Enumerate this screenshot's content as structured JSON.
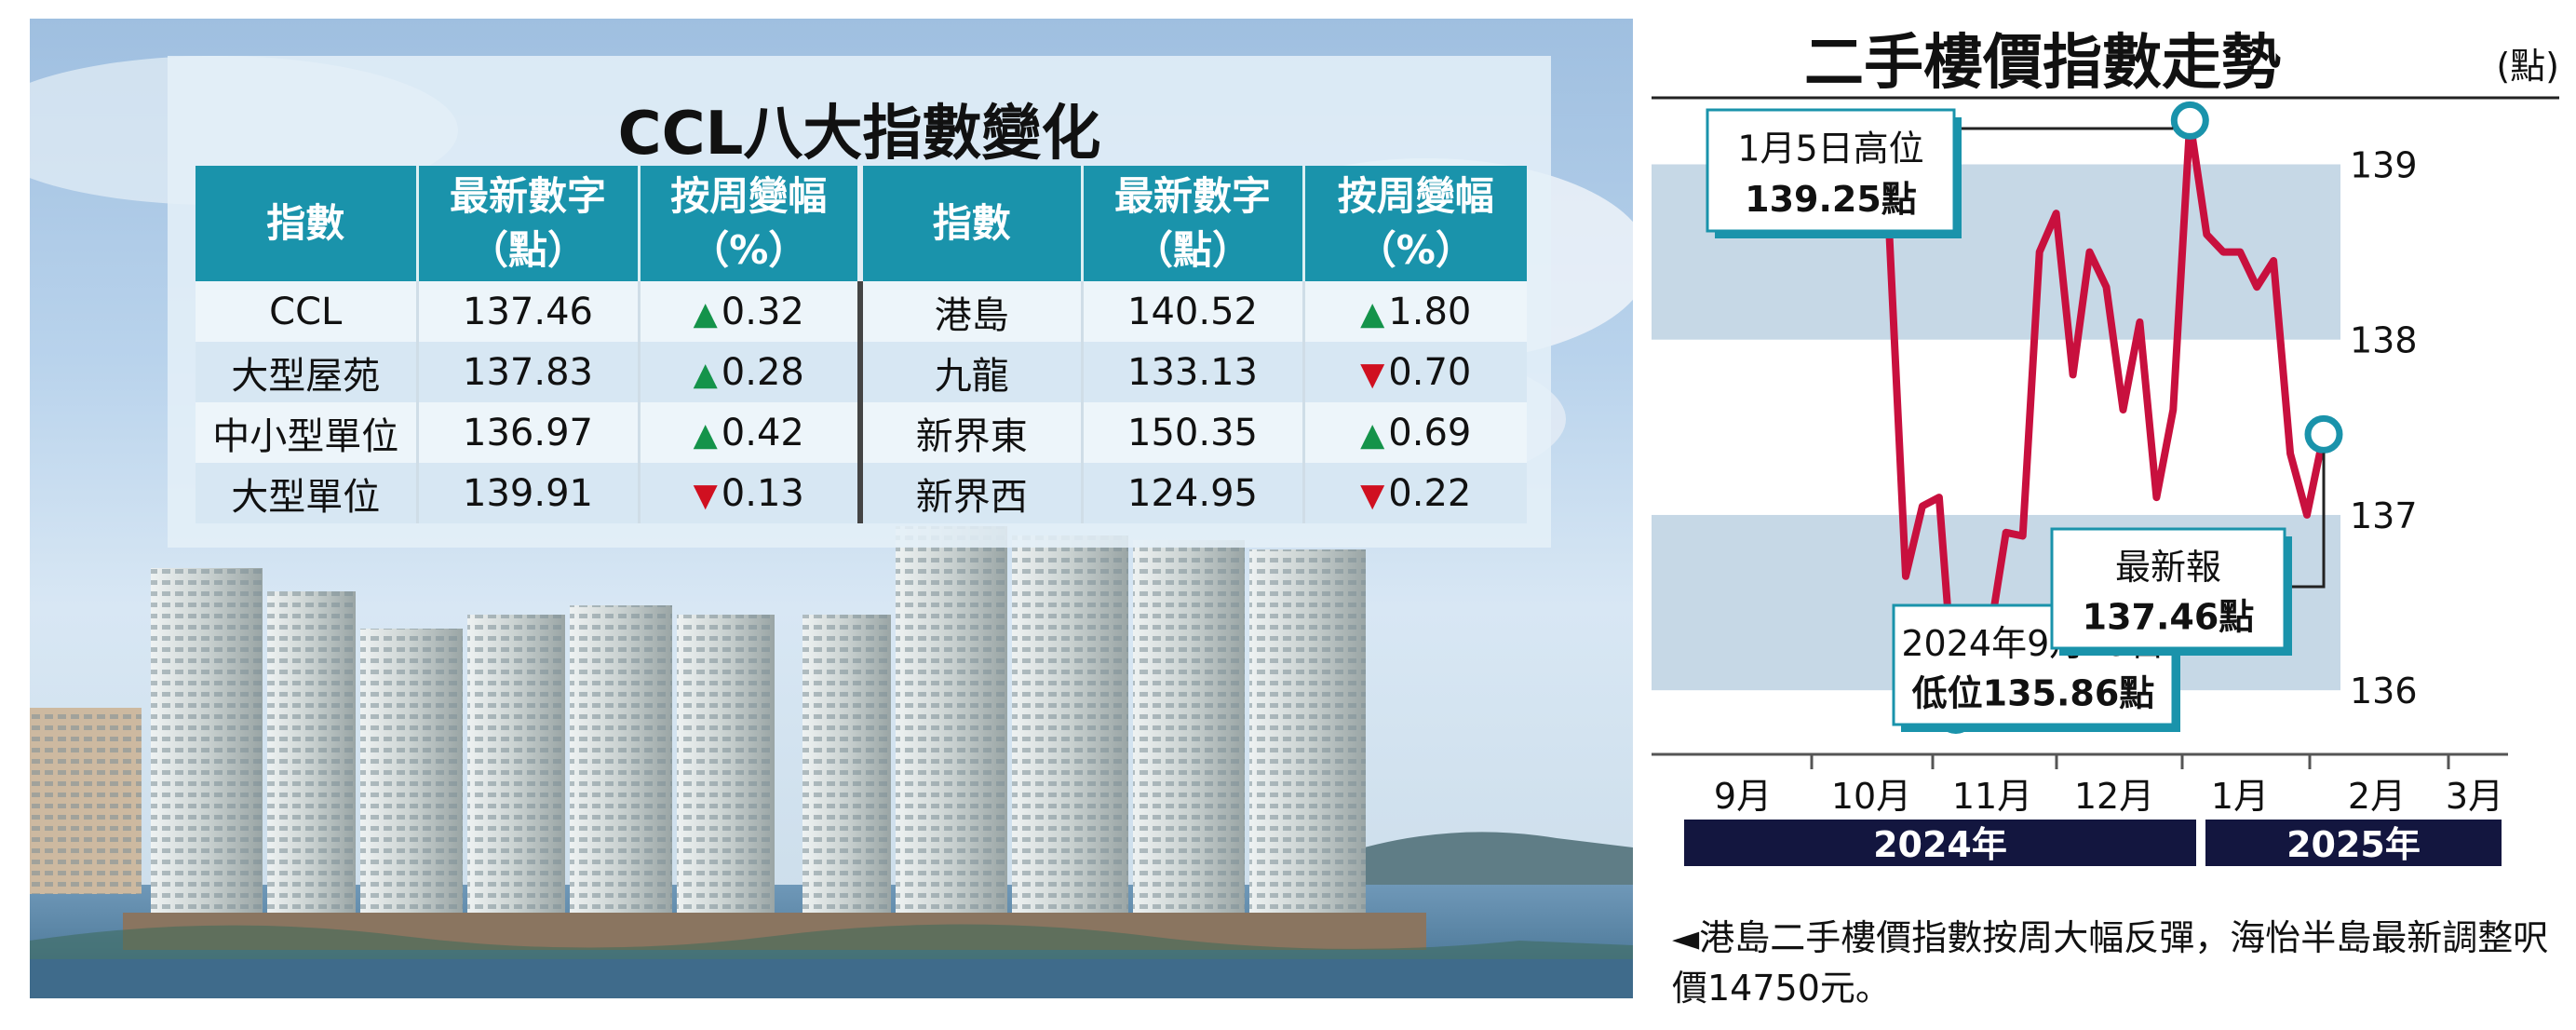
{
  "table": {
    "title": "CCL八大指數變化",
    "headers": [
      {
        "l1": "指數",
        "l2": ""
      },
      {
        "l1": "最新數字",
        "l2": "（點）"
      },
      {
        "l1": "按周變幅",
        "l2": "（%）"
      },
      {
        "l1": "指數",
        "l2": ""
      },
      {
        "l1": "最新數字",
        "l2": "（點）"
      },
      {
        "l1": "按周變幅",
        "l2": "（%）"
      }
    ],
    "rows": [
      {
        "name": "CCL",
        "value": "137.46",
        "dir": "up",
        "change": "0.32",
        "name2": "港島",
        "value2": "140.52",
        "dir2": "up",
        "change2": "1.80"
      },
      {
        "name": "大型屋苑",
        "value": "137.83",
        "dir": "up",
        "change": "0.28",
        "name2": "九龍",
        "value2": "133.13",
        "dir2": "down",
        "change2": "0.70"
      },
      {
        "name": "中小型單位",
        "value": "136.97",
        "dir": "up",
        "change": "0.42",
        "name2": "新界東",
        "value2": "150.35",
        "dir2": "up",
        "change2": "0.69"
      },
      {
        "name": "大型單位",
        "value": "139.91",
        "dir": "down",
        "change": "0.13",
        "name2": "新界西",
        "value2": "124.95",
        "dir2": "down",
        "change2": "0.22"
      }
    ],
    "colors": {
      "header": "#1a93ab",
      "up": "#14934a",
      "down": "#d01020"
    }
  },
  "chart_data": {
    "type": "line",
    "title": "二手樓價指數走勢",
    "ylabel": "(點)",
    "ylim": [
      135.9,
      139.3
    ],
    "yticks": [
      136,
      137,
      138,
      139
    ],
    "months": [
      "9月",
      "10月",
      "11月",
      "12月",
      "1月",
      "2月",
      "3月"
    ],
    "years": [
      "2024年",
      "2025年"
    ],
    "series": [
      {
        "values": [
          138.65,
          136.65,
          137.05,
          137.1,
          135.86,
          136.05,
          136.3,
          136.9,
          136.88,
          138.5,
          138.72,
          137.8,
          138.5,
          138.3,
          137.6,
          138.1,
          137.1,
          137.6,
          139.25,
          138.6,
          138.5,
          138.5,
          138.3,
          138.45,
          137.35,
          137.0,
          137.46
        ]
      }
    ],
    "line_color": "#c8103e",
    "annotations": {
      "high_line1": "1月5日高位",
      "high_line2": "139.25點",
      "low_line1": "2024年9月29日",
      "low_line2": "低位135.86點",
      "latest_line1": "最新報",
      "latest_line2": "137.46點"
    },
    "caption": "◄港島二手樓價指數按周大幅反彈，海怡半島最新調整呎價14750元。"
  }
}
